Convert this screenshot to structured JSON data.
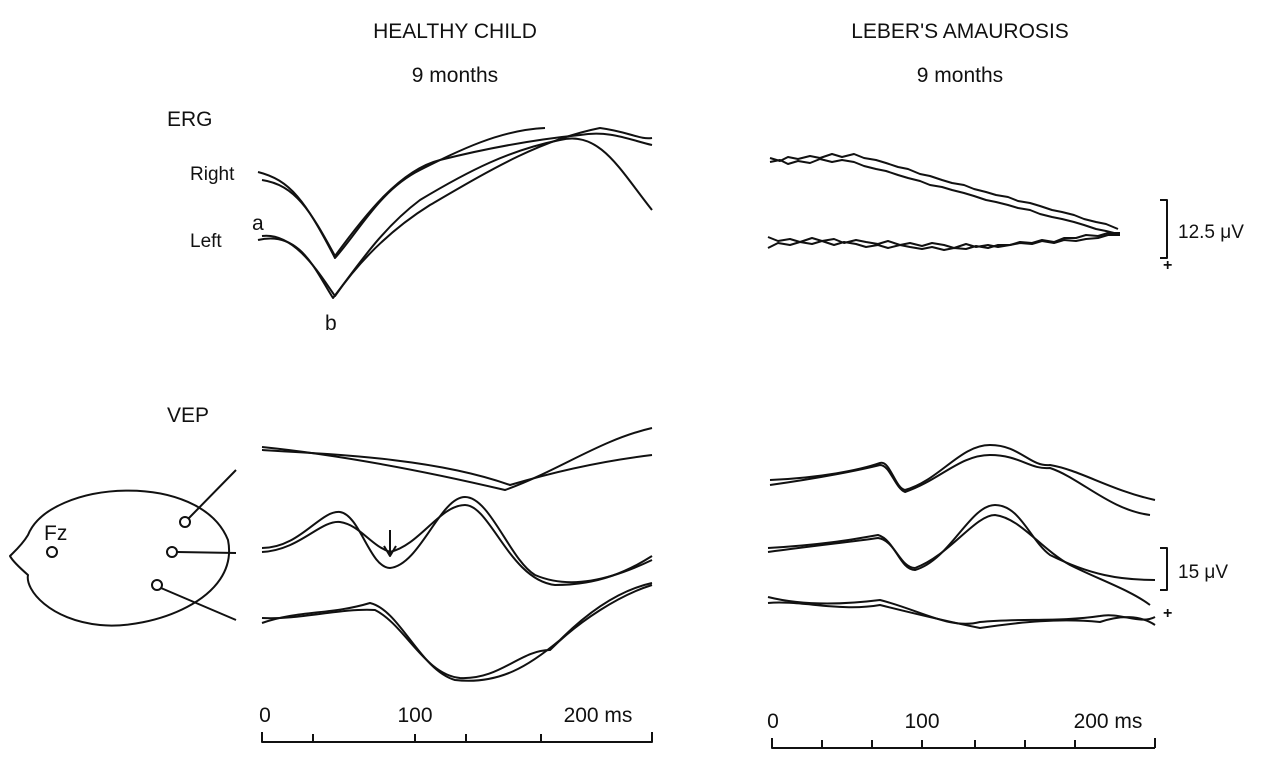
{
  "panels": [
    {
      "title": "HEALTHY CHILD",
      "subtitle": "9 months",
      "time_labels": [
        "0",
        "100",
        "200 ms"
      ]
    },
    {
      "title": "LEBER'S AMAUROSIS",
      "subtitle": "9 months",
      "time_labels": [
        "0",
        "100",
        "200 ms"
      ]
    }
  ],
  "erg": {
    "label": "ERG",
    "right": "Right",
    "left": "Left",
    "wave_a": "a",
    "wave_b": "b",
    "scale": "12.5 μV",
    "polarity": "+"
  },
  "vep": {
    "label": "VEP",
    "electrode": "Fz",
    "scale": "15 μV",
    "polarity": "+"
  }
}
